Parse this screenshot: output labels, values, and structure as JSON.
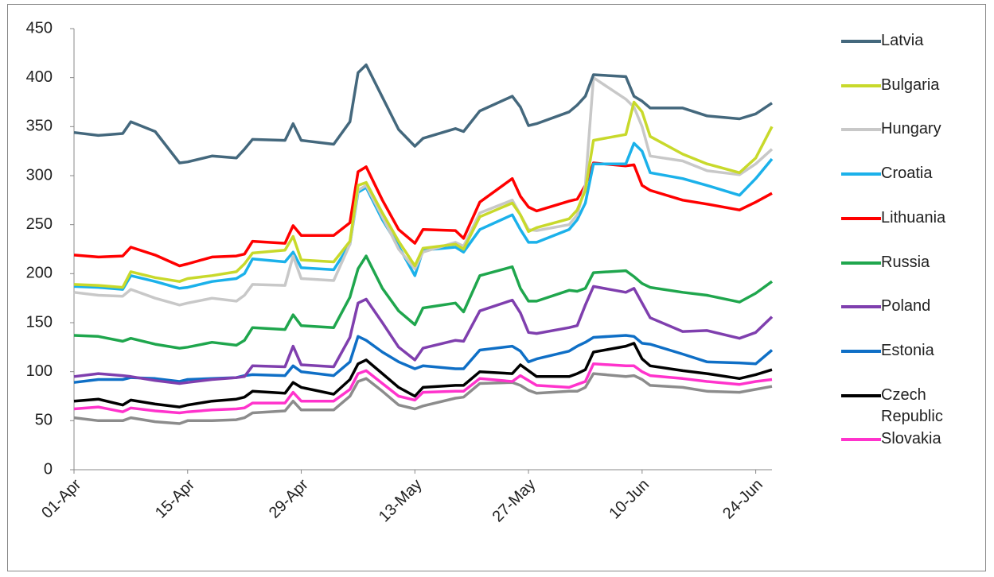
{
  "chart_data": {
    "type": "line",
    "x": [
      0,
      3,
      6,
      7,
      10,
      13,
      14,
      17,
      20,
      21,
      22,
      26,
      27,
      28,
      32,
      34,
      35,
      36,
      38,
      40,
      42,
      43,
      47,
      48,
      50,
      54,
      55,
      56,
      57,
      61,
      62,
      63,
      64,
      68,
      69,
      70,
      71,
      75,
      78,
      82,
      84,
      86
    ],
    "xlim": [
      0,
      86
    ],
    "xticks": [
      {
        "value": 0,
        "label": "01-Apr"
      },
      {
        "value": 14,
        "label": "15-Apr"
      },
      {
        "value": 28,
        "label": "29-Apr"
      },
      {
        "value": 42,
        "label": "13-May"
      },
      {
        "value": 56,
        "label": "27-May"
      },
      {
        "value": 70,
        "label": "10-Jun"
      },
      {
        "value": 84,
        "label": "24-Jun"
      }
    ],
    "ylim": [
      0,
      450
    ],
    "yticks": [
      0,
      50,
      100,
      150,
      200,
      250,
      300,
      350,
      400,
      450
    ],
    "grid": false,
    "series": [
      {
        "name": "Latvia",
        "color": "#44687d",
        "values": [
          344,
          341,
          343,
          355,
          345,
          313,
          314,
          320,
          318,
          327,
          337,
          336,
          353,
          336,
          332,
          355,
          405,
          413,
          380,
          347,
          330,
          338,
          348,
          345,
          366,
          381,
          370,
          351,
          353,
          365,
          372,
          381,
          403,
          401,
          381,
          376,
          369,
          369,
          361,
          358,
          363,
          374
        ]
      },
      {
        "name": "Bulgaria",
        "color": "#c8d92b",
        "values": [
          189,
          188,
          186,
          202,
          196,
          192,
          195,
          198,
          202,
          210,
          221,
          224,
          238,
          214,
          212,
          233,
          290,
          293,
          262,
          233,
          208,
          226,
          230,
          225,
          258,
          272,
          260,
          243,
          247,
          256,
          265,
          285,
          336,
          342,
          375,
          365,
          340,
          322,
          312,
          303,
          318,
          350
        ]
      },
      {
        "name": "Hungary",
        "color": "#c8c8c8",
        "values": [
          181,
          178,
          177,
          184,
          175,
          168,
          170,
          175,
          172,
          178,
          189,
          188,
          218,
          195,
          193,
          230,
          285,
          290,
          258,
          225,
          205,
          222,
          232,
          228,
          262,
          275,
          260,
          245,
          244,
          250,
          260,
          290,
          400,
          378,
          370,
          350,
          320,
          315,
          305,
          301,
          312,
          327
        ]
      },
      {
        "name": "Croatia",
        "color": "#1bb1ea",
        "values": [
          187,
          186,
          184,
          198,
          192,
          185,
          186,
          192,
          195,
          200,
          215,
          212,
          222,
          206,
          204,
          230,
          283,
          288,
          255,
          228,
          198,
          224,
          227,
          222,
          245,
          260,
          245,
          232,
          232,
          245,
          255,
          272,
          312,
          312,
          333,
          325,
          303,
          297,
          290,
          280,
          297,
          317
        ]
      },
      {
        "name": "Lithuania",
        "color": "#ff0000",
        "values": [
          219,
          217,
          218,
          227,
          219,
          208,
          210,
          217,
          218,
          220,
          233,
          231,
          249,
          239,
          239,
          252,
          304,
          309,
          275,
          245,
          231,
          245,
          244,
          236,
          273,
          297,
          279,
          268,
          264,
          274,
          276,
          290,
          313,
          310,
          311,
          290,
          285,
          275,
          271,
          265,
          273,
          282
        ]
      },
      {
        "name": "Russia",
        "color": "#1fa64d",
        "values": [
          137,
          136,
          131,
          134,
          128,
          124,
          125,
          130,
          127,
          132,
          145,
          143,
          158,
          147,
          145,
          176,
          205,
          218,
          185,
          162,
          148,
          165,
          170,
          161,
          198,
          207,
          185,
          172,
          172,
          183,
          182,
          185,
          201,
          203,
          197,
          190,
          186,
          181,
          178,
          171,
          180,
          192
        ]
      },
      {
        "name": "Poland",
        "color": "#7f3fae",
        "values": [
          95,
          98,
          96,
          95,
          91,
          88,
          89,
          92,
          94,
          95,
          106,
          105,
          126,
          107,
          105,
          135,
          170,
          174,
          150,
          125,
          112,
          124,
          132,
          131,
          162,
          173,
          160,
          140,
          139,
          145,
          147,
          168,
          187,
          181,
          185,
          170,
          155,
          141,
          142,
          134,
          140,
          156
        ]
      },
      {
        "name": "Estonia",
        "color": "#0f6fc6",
        "values": [
          89,
          92,
          92,
          94,
          93,
          90,
          92,
          93,
          94,
          96,
          97,
          96,
          106,
          100,
          96,
          110,
          136,
          132,
          120,
          110,
          103,
          106,
          103,
          103,
          122,
          126,
          121,
          110,
          113,
          121,
          126,
          130,
          135,
          137,
          136,
          129,
          128,
          118,
          110,
          109,
          108,
          122
        ]
      },
      {
        "name": "Czech Republic",
        "color": "#000000",
        "values": [
          70,
          72,
          66,
          71,
          67,
          64,
          66,
          70,
          72,
          74,
          80,
          78,
          89,
          84,
          77,
          92,
          108,
          112,
          98,
          84,
          75,
          84,
          86,
          86,
          100,
          98,
          107,
          101,
          95,
          95,
          98,
          102,
          120,
          126,
          129,
          113,
          106,
          101,
          98,
          93,
          97,
          102
        ]
      },
      {
        "name": "Slovakia",
        "color": "#ff33cc",
        "values": [
          62,
          64,
          59,
          63,
          60,
          58,
          59,
          61,
          62,
          63,
          68,
          68,
          79,
          70,
          70,
          82,
          98,
          101,
          88,
          75,
          71,
          79,
          80,
          80,
          93,
          90,
          96,
          91,
          86,
          84,
          87,
          90,
          108,
          106,
          106,
          100,
          96,
          93,
          90,
          87,
          90,
          92
        ]
      },
      {
        "color": "#8c8c8c",
        "values": [
          53,
          50,
          50,
          53,
          49,
          47,
          50,
          50,
          51,
          53,
          58,
          60,
          70,
          61,
          61,
          75,
          90,
          93,
          80,
          66,
          62,
          65,
          73,
          74,
          88,
          89,
          86,
          81,
          78,
          80,
          80,
          84,
          98,
          95,
          96,
          92,
          86,
          84,
          80,
          79,
          82,
          85
        ]
      }
    ]
  }
}
